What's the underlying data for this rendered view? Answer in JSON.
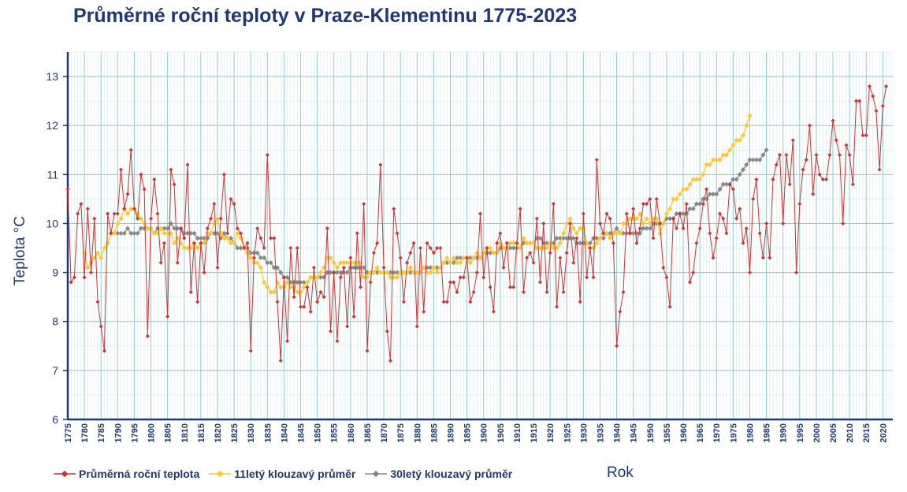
{
  "chart_data": {
    "type": "line",
    "title": "Průměrné roční teploty v Praze-Klementinu 1775-2023",
    "xlabel": "Rok",
    "ylabel": "Teplota  °C",
    "xlim": [
      1775,
      2023
    ],
    "ylim": [
      6,
      13.5
    ],
    "yticks": [
      6,
      7,
      8,
      9,
      10,
      11,
      12,
      13
    ],
    "xticks": [
      1775,
      1780,
      1785,
      1790,
      1795,
      1800,
      1805,
      1810,
      1815,
      1820,
      1825,
      1830,
      1835,
      1840,
      1845,
      1850,
      1855,
      1860,
      1865,
      1870,
      1875,
      1880,
      1885,
      1890,
      1895,
      1900,
      1905,
      1910,
      1915,
      1920,
      1925,
      1930,
      1935,
      1940,
      1945,
      1950,
      1955,
      1960,
      1965,
      1970,
      1975,
      1980,
      1985,
      1990,
      1995,
      2000,
      2005,
      2010,
      2015,
      2020
    ],
    "grid": true,
    "legend_position": "bottom-left",
    "series": [
      {
        "name": "Průměrná roční teplota",
        "color": "#cc3333",
        "x_start": 1775,
        "values": [
          10.7,
          8.8,
          8.9,
          10.2,
          10.4,
          8.9,
          10.3,
          9.0,
          10.1,
          8.4,
          7.9,
          7.4,
          10.2,
          9.8,
          10.2,
          10.2,
          11.1,
          10.3,
          10.6,
          11.5,
          10.3,
          10.1,
          11.0,
          10.7,
          7.7,
          10.1,
          10.9,
          10.2,
          9.2,
          9.6,
          8.1,
          11.1,
          10.8,
          9.2,
          9.9,
          9.7,
          11.2,
          8.6,
          9.6,
          8.4,
          9.6,
          9.0,
          9.9,
          10.1,
          10.4,
          9.1,
          10.1,
          11.0,
          9.8,
          10.5,
          10.4,
          9.9,
          9.8,
          9.5,
          9.6,
          7.4,
          9.3,
          9.9,
          9.7,
          9.5,
          11.4,
          9.7,
          9.7,
          8.4,
          7.2,
          8.9,
          7.6,
          9.5,
          8.5,
          9.5,
          8.3,
          8.3,
          8.7,
          8.2,
          9.1,
          8.4,
          8.6,
          8.5,
          9.9,
          7.8,
          9.0,
          7.6,
          8.9,
          9.1,
          7.9,
          9.3,
          8.1,
          9.8,
          8.7,
          10.4,
          7.4,
          8.8,
          9.4,
          9.6,
          11.2,
          9.1,
          7.8,
          7.2,
          10.3,
          9.8,
          9.3,
          8.4,
          9.2,
          9.4,
          9.6,
          7.9,
          9.5,
          8.2,
          9.6,
          9.5,
          9.4,
          9.5,
          9.5,
          8.4,
          8.4,
          8.8,
          8.8,
          8.6,
          8.9,
          8.9,
          9.3,
          8.4,
          8.6,
          9.0,
          10.2,
          8.9,
          9.5,
          8.7,
          8.2,
          9.6,
          9.8,
          9.1,
          9.6,
          8.7,
          8.7,
          9.6,
          10.3,
          8.6,
          9.3,
          9.4,
          9.2,
          10.1,
          8.8,
          10.0,
          8.6,
          9.4,
          10.4,
          8.3,
          9.3,
          8.6,
          9.4,
          10.0,
          9.2,
          9.7,
          8.4,
          10.2,
          8.9,
          9.5,
          8.9,
          11.3,
          10.0,
          9.8,
          10.2,
          10.1,
          9.6,
          7.5,
          8.2,
          8.6,
          10.2,
          9.8,
          10.3,
          9.6,
          9.9,
          10.4,
          10.4,
          10.5,
          9.7,
          10.5,
          10.0,
          9.1,
          8.9,
          8.3,
          10.1,
          9.9,
          10.2,
          9.9,
          10.4,
          8.8,
          9.0,
          9.6,
          9.9,
          10.4,
          10.7,
          9.8,
          9.3,
          9.7,
          10.2,
          10.1,
          9.8,
          10.8,
          10.7,
          10.1,
          10.3,
          9.6,
          9.9,
          9.0,
          10.5,
          10.9,
          9.8,
          9.3,
          10.0,
          9.3,
          10.9,
          11.2,
          11.4,
          10.0,
          11.4,
          10.8,
          11.7,
          9.0,
          10.4,
          11.1,
          11.3,
          12.0,
          10.6,
          11.4,
          11.0,
          10.9,
          10.9,
          11.4,
          12.1,
          11.7,
          11.4,
          10.0,
          11.6,
          11.4,
          10.8,
          12.5,
          12.5,
          11.8,
          11.8,
          12.8,
          12.6,
          12.3,
          11.1,
          12.4,
          12.8
        ]
      },
      {
        "name": "11letý klouzavý průměr",
        "color": "#ffc72e",
        "x_start": 1780,
        "values": [
          9.4,
          9.1,
          9.2,
          9.3,
          9.4,
          9.3,
          9.5,
          9.6,
          9.8,
          9.8,
          10.0,
          10.1,
          10.3,
          10.2,
          10.3,
          10.3,
          10.2,
          10.1,
          10.0,
          9.9,
          9.9,
          9.8,
          9.8,
          9.9,
          9.8,
          9.8,
          9.8,
          9.6,
          9.7,
          9.6,
          9.5,
          9.5,
          9.5,
          9.6,
          9.5,
          9.6,
          9.6,
          9.8,
          9.8,
          10.0,
          10.1,
          9.8,
          9.7,
          9.7,
          9.6,
          9.6,
          9.8,
          9.7,
          9.5,
          9.4,
          9.3,
          9.2,
          9.2,
          9.1,
          8.8,
          8.7,
          8.6,
          8.6,
          8.8,
          8.7,
          8.7,
          8.8,
          8.7,
          8.7,
          8.6,
          8.6,
          8.7,
          8.8,
          8.9,
          8.9,
          8.9,
          9.0,
          9.1,
          9.3,
          9.3,
          9.2,
          9.1,
          9.2,
          9.2,
          9.2,
          9.2,
          9.2,
          9.2,
          9.2,
          8.9,
          8.9,
          9.0,
          9.0,
          9.1,
          9.0,
          9.0,
          9.0,
          8.9,
          8.9,
          8.9,
          9.0,
          9.0,
          9.0,
          9.1,
          9.0,
          9.0,
          9.0,
          9.1,
          9.0,
          9.0,
          9.1,
          9.0,
          9.1,
          9.2,
          9.3,
          9.2,
          9.3,
          9.2,
          9.2,
          9.3,
          9.3,
          9.2,
          9.3,
          9.4,
          9.3,
          9.4,
          9.5,
          9.5,
          9.4,
          9.4,
          9.6,
          9.5,
          9.5,
          9.6,
          9.6,
          9.6,
          9.5,
          9.7,
          9.6,
          9.6,
          9.6,
          9.5,
          9.5,
          9.5,
          9.5,
          9.6,
          9.5,
          9.5,
          9.6,
          9.8,
          10.0,
          10.1,
          9.9,
          9.8,
          9.9,
          9.9,
          9.6,
          9.5,
          9.5,
          9.6,
          9.7,
          9.8,
          9.8,
          9.7,
          9.8,
          9.8,
          9.8,
          10.0,
          10.0,
          10.1,
          10.1,
          10.1,
          10.2,
          10.0,
          10.1,
          10.0,
          10.1,
          10.1,
          9.8,
          10.0,
          10.2,
          10.3,
          10.5,
          10.5,
          10.6,
          10.7,
          10.7,
          10.8,
          10.9,
          10.9,
          10.9,
          11.0,
          11.2,
          11.2,
          11.3,
          11.3,
          11.3,
          11.4,
          11.4,
          11.5,
          11.6,
          11.7,
          11.7,
          11.8,
          12.0,
          12.2
        ]
      },
      {
        "name": "30letý klouzavý průměr",
        "color": "#888888",
        "x_start": 1789,
        "values": [
          9.8,
          9.8,
          9.8,
          9.8,
          9.9,
          9.8,
          9.8,
          9.8,
          9.9,
          9.9,
          9.9,
          9.9,
          9.8,
          9.9,
          9.9,
          9.9,
          9.9,
          10.0,
          9.9,
          9.9,
          9.9,
          9.8,
          9.8,
          9.8,
          9.8,
          9.7,
          9.7,
          9.7,
          9.7,
          9.8,
          9.8,
          9.8,
          9.7,
          9.8,
          9.7,
          9.7,
          9.6,
          9.5,
          9.5,
          9.5,
          9.5,
          9.4,
          9.4,
          9.4,
          9.3,
          9.3,
          9.2,
          9.2,
          9.1,
          9.1,
          9.0,
          8.9,
          8.9,
          8.8,
          8.8,
          8.8,
          8.8,
          8.8,
          8.8,
          8.9,
          8.9,
          8.9,
          8.9,
          8.9,
          9.0,
          9.0,
          9.0,
          9.0,
          9.0,
          9.0,
          9.0,
          9.1,
          9.1,
          9.1,
          9.1,
          9.1,
          9.0,
          9.0,
          9.0,
          9.0,
          9.0,
          9.0,
          9.0,
          9.0,
          9.0,
          9.0,
          9.0,
          9.0,
          9.0,
          9.0,
          9.0,
          9.0,
          9.0,
          9.1,
          9.1,
          9.1,
          9.1,
          9.1,
          9.1,
          9.2,
          9.2,
          9.2,
          9.2,
          9.3,
          9.3,
          9.3,
          9.3,
          9.3,
          9.3,
          9.3,
          9.3,
          9.4,
          9.4,
          9.4,
          9.4,
          9.4,
          9.5,
          9.5,
          9.5,
          9.5,
          9.5,
          9.5,
          9.5,
          9.6,
          9.6,
          9.6,
          9.6,
          9.7,
          9.7,
          9.6,
          9.6,
          9.6,
          9.6,
          9.7,
          9.7,
          9.7,
          9.7,
          9.7,
          9.7,
          9.6,
          9.6,
          9.6,
          9.6,
          9.6,
          9.7,
          9.7,
          9.7,
          9.7,
          9.8,
          9.8,
          9.8,
          9.9,
          9.8,
          9.8,
          9.8,
          9.8,
          9.8,
          9.8,
          9.8,
          9.9,
          9.9,
          9.9,
          10.0,
          10.0,
          10.0,
          10.0,
          10.1,
          10.1,
          10.1,
          10.2,
          10.2,
          10.2,
          10.2,
          10.3,
          10.3,
          10.4,
          10.4,
          10.5,
          10.5,
          10.6,
          10.6,
          10.6,
          10.7,
          10.8,
          10.8,
          10.8,
          10.9,
          10.9,
          11.0,
          11.1,
          11.2,
          11.3,
          11.3,
          11.3,
          11.3,
          11.4,
          11.5
        ]
      }
    ]
  }
}
